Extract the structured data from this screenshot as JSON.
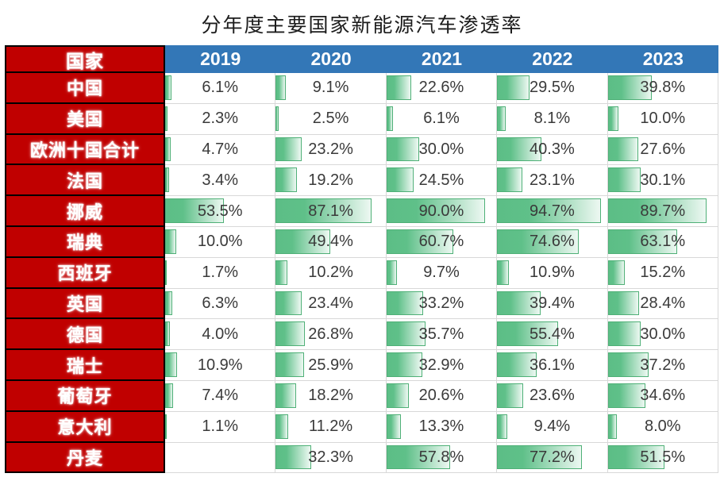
{
  "chart_data": {
    "type": "table",
    "title": "分年度主要国家新能源汽车渗透率",
    "corner_label": "国家",
    "columns": [
      "2019",
      "2020",
      "2021",
      "2022",
      "2023"
    ],
    "rows": [
      {
        "country": "中国",
        "values": [
          6.1,
          9.1,
          22.6,
          29.5,
          39.8
        ]
      },
      {
        "country": "美国",
        "values": [
          2.3,
          2.5,
          6.1,
          8.1,
          10.0
        ]
      },
      {
        "country": "欧洲十国合计",
        "values": [
          4.7,
          23.2,
          30.0,
          40.3,
          27.6
        ]
      },
      {
        "country": "法国",
        "values": [
          3.4,
          19.2,
          24.5,
          23.1,
          30.1
        ]
      },
      {
        "country": "挪威",
        "values": [
          53.5,
          87.1,
          90.0,
          94.7,
          89.7
        ]
      },
      {
        "country": "瑞典",
        "values": [
          10.0,
          49.4,
          60.7,
          74.6,
          63.1
        ]
      },
      {
        "country": "西班牙",
        "values": [
          1.7,
          10.2,
          9.7,
          10.9,
          15.2
        ]
      },
      {
        "country": "英国",
        "values": [
          6.3,
          23.4,
          33.2,
          39.4,
          28.4
        ]
      },
      {
        "country": "德国",
        "values": [
          4.0,
          26.8,
          35.7,
          55.4,
          30.0
        ]
      },
      {
        "country": "瑞士",
        "values": [
          10.9,
          25.9,
          32.9,
          36.1,
          37.2
        ]
      },
      {
        "country": "葡萄牙",
        "values": [
          7.4,
          18.2,
          20.6,
          23.6,
          34.6
        ]
      },
      {
        "country": "意大利",
        "values": [
          1.1,
          11.2,
          13.3,
          9.4,
          8.0
        ]
      },
      {
        "country": "丹麦",
        "values": [
          null,
          32.3,
          57.8,
          77.2,
          51.5
        ]
      }
    ],
    "value_format": "one_decimal_percent",
    "bar_scale_max": 100
  },
  "colors": {
    "country_cell_bg": "#C00000",
    "country_cell_border": "#000000",
    "year_header_bg": "#3377B7",
    "header_text": "#FFFFFF",
    "bar_fill_start": "#5CBE86",
    "bar_fill_end": "#EDF8F2",
    "bar_border": "#4FB077",
    "gridline": "#D8D8D8",
    "value_text": "#3A3A3A",
    "title_text": "#1C1C1C"
  }
}
